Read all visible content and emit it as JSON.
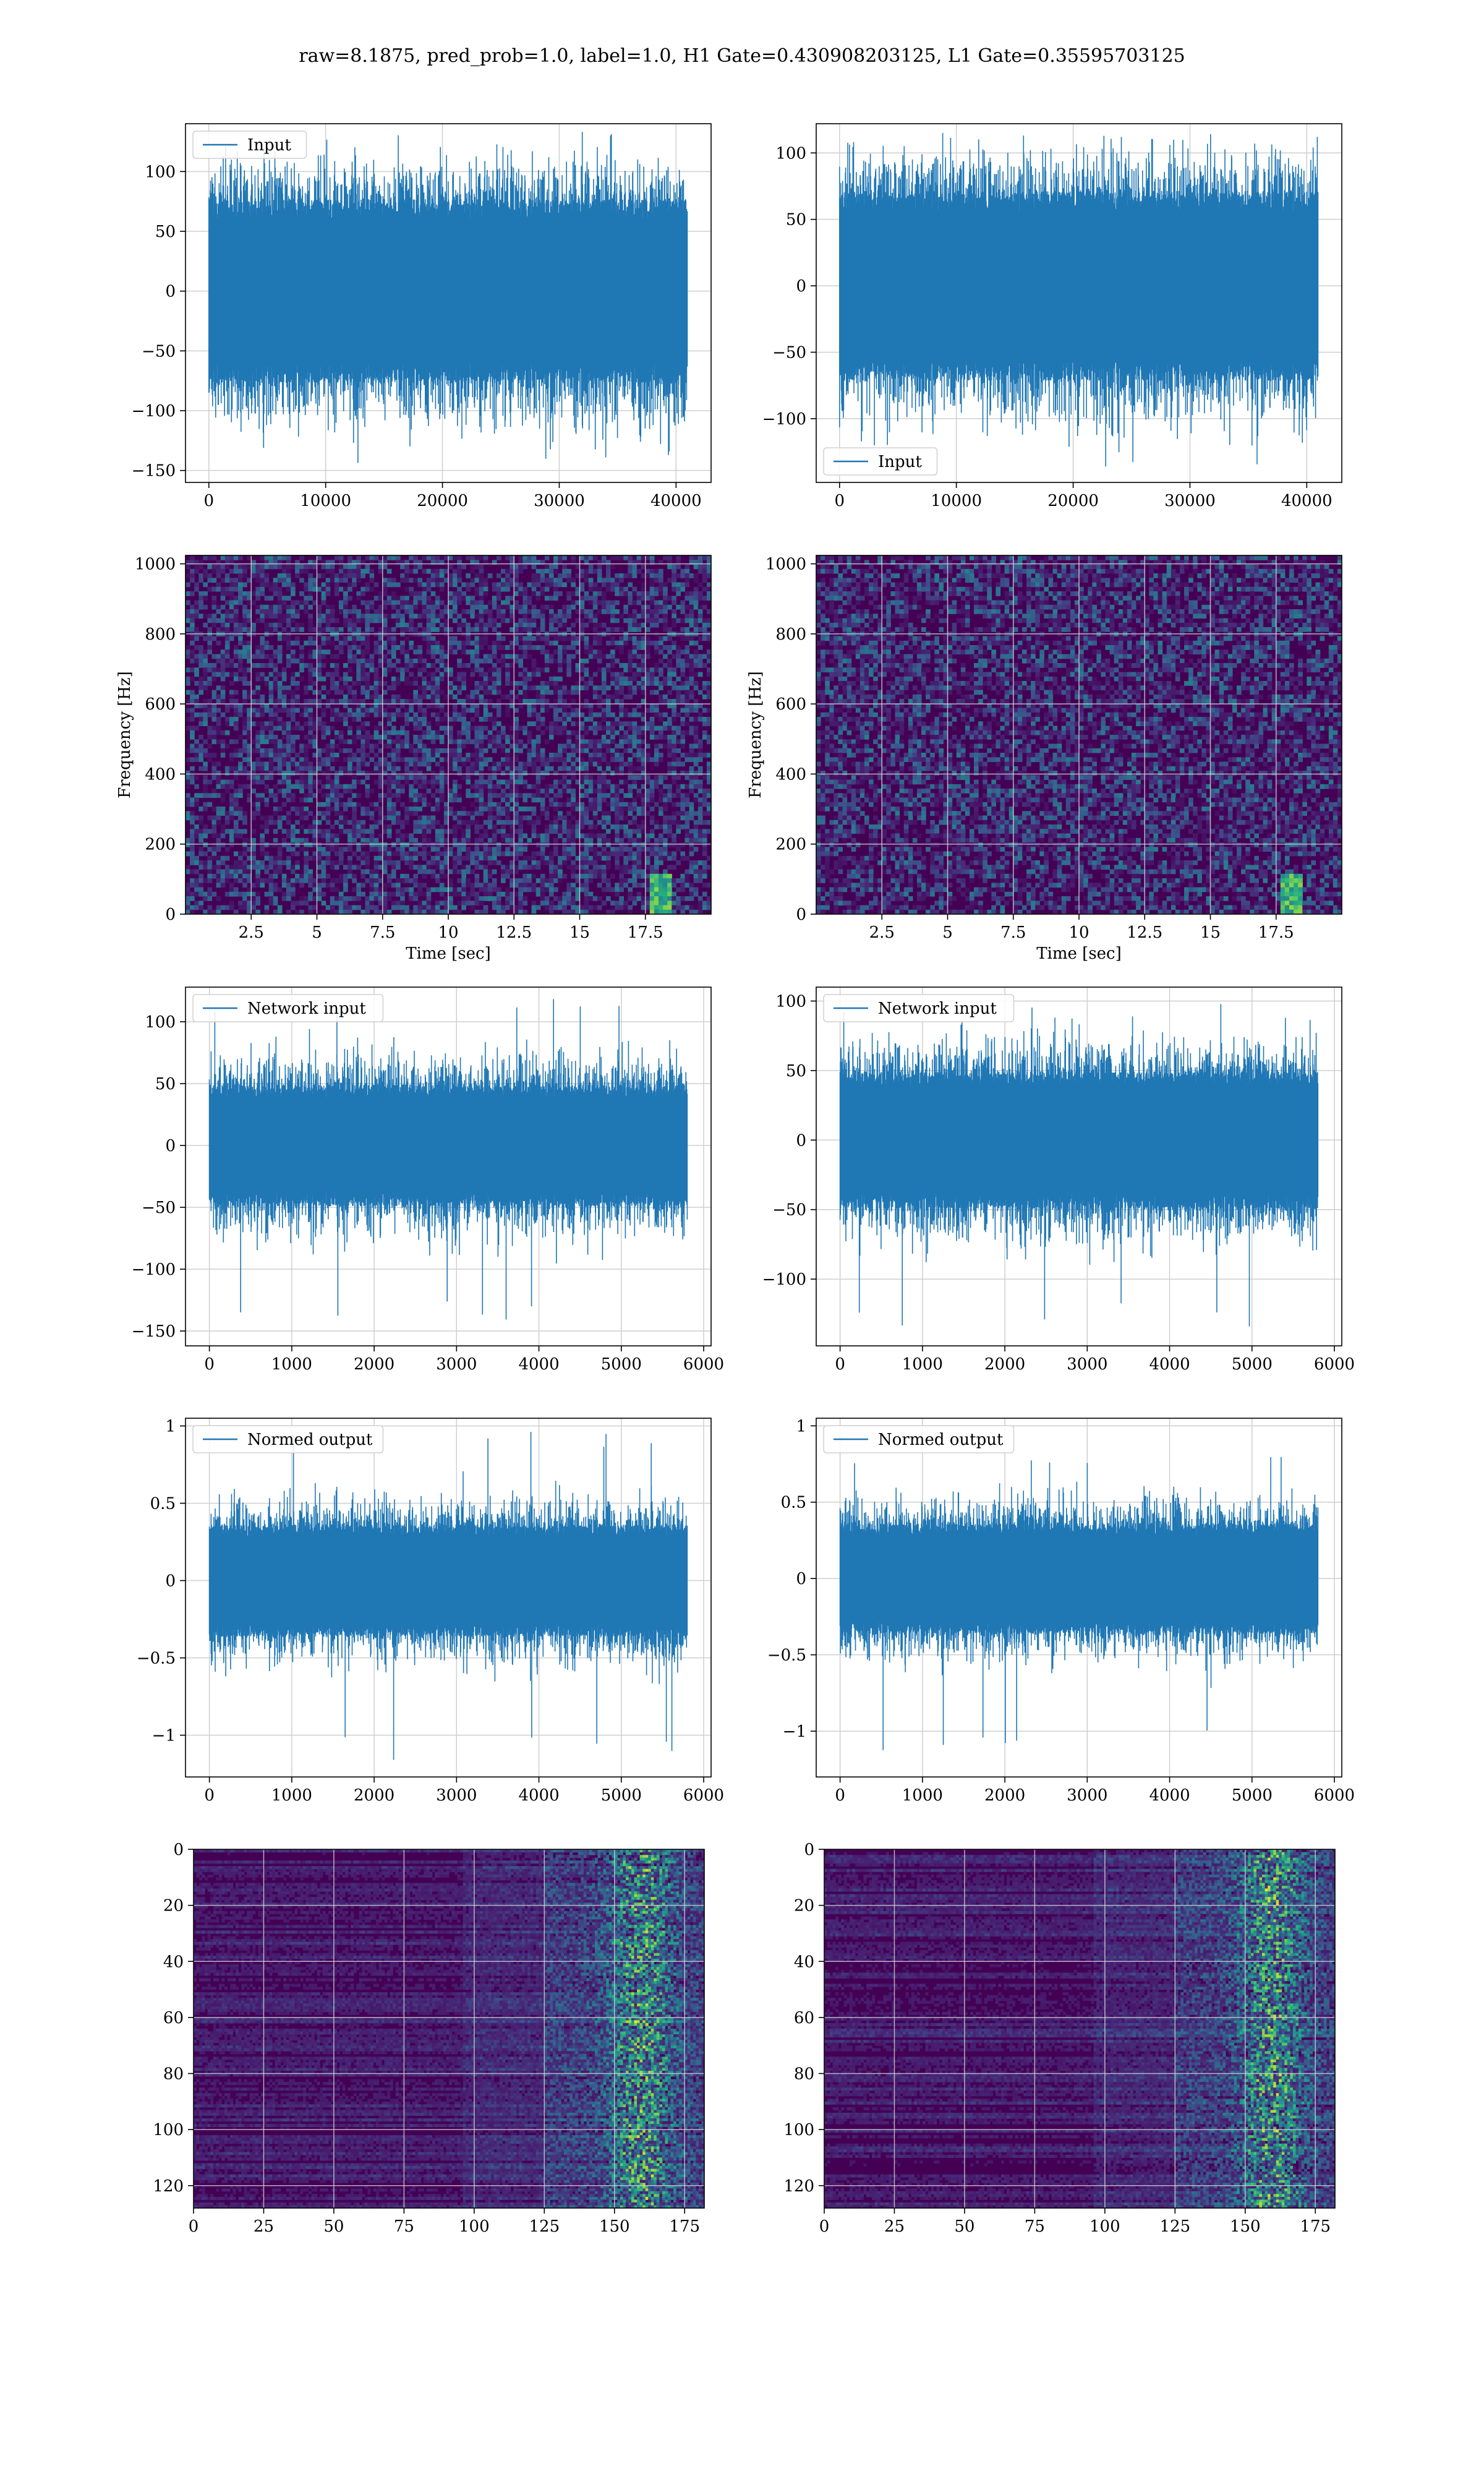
{
  "title": "raw=8.1875, pred_prob=1.0, label=1.0, H1 Gate=0.430908203125, L1 Gate=0.35595703125",
  "colors": {
    "line": "#1f77b4",
    "grid": "#cfcfcf",
    "viridis_dark": "#440154"
  },
  "chart_data": [
    {
      "id": "h1-input",
      "type": "line",
      "title": "",
      "xlabel": "",
      "ylabel": "",
      "legend": "Input",
      "legend_loc": "upper-left",
      "xlim": [
        -2000,
        43000
      ],
      "ylim": [
        -160,
        140
      ],
      "xticks": [
        0,
        10000,
        20000,
        30000,
        40000
      ],
      "yticks": [
        -150,
        -100,
        -50,
        0,
        50,
        100
      ],
      "n_points": 40960,
      "envelope": {
        "core": 70,
        "spike_max": 135,
        "spike_min": -145
      },
      "series": [
        {
          "name": "Input"
        }
      ]
    },
    {
      "id": "l1-input",
      "type": "line",
      "title": "",
      "xlabel": "",
      "ylabel": "",
      "legend": "Input",
      "legend_loc": "lower-left",
      "xlim": [
        -2000,
        43000
      ],
      "ylim": [
        -148,
        122
      ],
      "xticks": [
        0,
        10000,
        20000,
        30000,
        40000
      ],
      "yticks": [
        -100,
        -50,
        0,
        50,
        100
      ],
      "n_points": 40960,
      "envelope": {
        "core": 65,
        "spike_max": 120,
        "spike_min": -138
      },
      "series": [
        {
          "name": "Input"
        }
      ]
    },
    {
      "id": "h1-spectrogram",
      "type": "heatmap",
      "title": "",
      "xlabel": "Time [sec]",
      "ylabel": "Frequency [Hz]",
      "xlim": [
        0,
        20
      ],
      "ylim": [
        0,
        1024
      ],
      "xticks": [
        2.5,
        5.0,
        7.5,
        10.0,
        12.5,
        15.0,
        17.5
      ],
      "yticks": [
        0,
        200,
        400,
        600,
        800,
        1000
      ],
      "grid": true
    },
    {
      "id": "l1-spectrogram",
      "type": "heatmap",
      "title": "",
      "xlabel": "Time [sec]",
      "ylabel": "Frequency [Hz]",
      "xlim": [
        0,
        20
      ],
      "ylim": [
        0,
        1024
      ],
      "xticks": [
        2.5,
        5.0,
        7.5,
        10.0,
        12.5,
        15.0,
        17.5
      ],
      "yticks": [
        0,
        200,
        400,
        600,
        800,
        1000
      ],
      "grid": true
    },
    {
      "id": "h1-network-input",
      "type": "line",
      "title": "",
      "xlabel": "",
      "ylabel": "",
      "legend": "Network input",
      "legend_loc": "upper-left",
      "xlim": [
        -290,
        6090
      ],
      "ylim": [
        -162,
        128
      ],
      "xticks": [
        0,
        1000,
        2000,
        3000,
        4000,
        5000,
        6000
      ],
      "yticks": [
        -150,
        -100,
        -50,
        0,
        50,
        100
      ],
      "n_points": 5800,
      "envelope": {
        "core": 45,
        "spike_max": 122,
        "spike_min": -148
      },
      "series": [
        {
          "name": "Network input"
        }
      ]
    },
    {
      "id": "l1-network-input",
      "type": "line",
      "title": "",
      "xlabel": "",
      "ylabel": "",
      "legend": "Network input",
      "legend_loc": "upper-left",
      "xlim": [
        -290,
        6090
      ],
      "ylim": [
        -148,
        110
      ],
      "xticks": [
        0,
        1000,
        2000,
        3000,
        4000,
        5000,
        6000
      ],
      "yticks": [
        -100,
        -50,
        0,
        50,
        100
      ],
      "n_points": 5800,
      "envelope": {
        "core": 45,
        "spike_max": 100,
        "spike_min": -138
      },
      "series": [
        {
          "name": "Network input"
        }
      ]
    },
    {
      "id": "h1-normed-output",
      "type": "line",
      "title": "",
      "xlabel": "",
      "ylabel": "",
      "legend": "Normed output",
      "legend_loc": "upper-left",
      "xlim": [
        -290,
        6090
      ],
      "ylim": [
        -1.27,
        1.05
      ],
      "xticks": [
        0,
        1000,
        2000,
        3000,
        4000,
        5000,
        6000
      ],
      "yticks": [
        -1.0,
        -0.5,
        0.0,
        0.5,
        1.0
      ],
      "n_points": 5800,
      "envelope": {
        "core": 0.33,
        "spike_max": 0.98,
        "spike_min": -1.18
      },
      "series": [
        {
          "name": "Normed output"
        }
      ]
    },
    {
      "id": "l1-normed-output",
      "type": "line",
      "title": "",
      "xlabel": "",
      "ylabel": "",
      "legend": "Normed output",
      "legend_loc": "upper-left",
      "xlim": [
        -290,
        6090
      ],
      "ylim": [
        -1.3,
        1.05
      ],
      "xticks": [
        0,
        1000,
        2000,
        3000,
        4000,
        5000,
        6000
      ],
      "yticks": [
        -1.0,
        -0.5,
        0.0,
        0.5,
        1.0
      ],
      "n_points": 5800,
      "envelope": {
        "core": 0.33,
        "spike_max": 0.82,
        "spike_min": -1.16
      },
      "series": [
        {
          "name": "Normed output"
        }
      ]
    },
    {
      "id": "h1-feature-map",
      "type": "heatmap",
      "title": "",
      "xlabel": "",
      "ylabel": "",
      "xlim": [
        0,
        182
      ],
      "ylim": [
        128,
        0
      ],
      "xticks": [
        0,
        25,
        50,
        75,
        100,
        125,
        150,
        175
      ],
      "yticks": [
        0,
        20,
        40,
        60,
        80,
        100,
        120
      ],
      "grid": true,
      "active_region": [
        125,
        182
      ]
    },
    {
      "id": "l1-feature-map",
      "type": "heatmap",
      "title": "",
      "xlabel": "",
      "ylabel": "",
      "xlim": [
        0,
        182
      ],
      "ylim": [
        128,
        0
      ],
      "xticks": [
        0,
        25,
        50,
        75,
        100,
        125,
        150,
        175
      ],
      "yticks": [
        0,
        20,
        40,
        60,
        80,
        100,
        120
      ],
      "grid": true,
      "active_region": [
        125,
        182
      ]
    }
  ]
}
